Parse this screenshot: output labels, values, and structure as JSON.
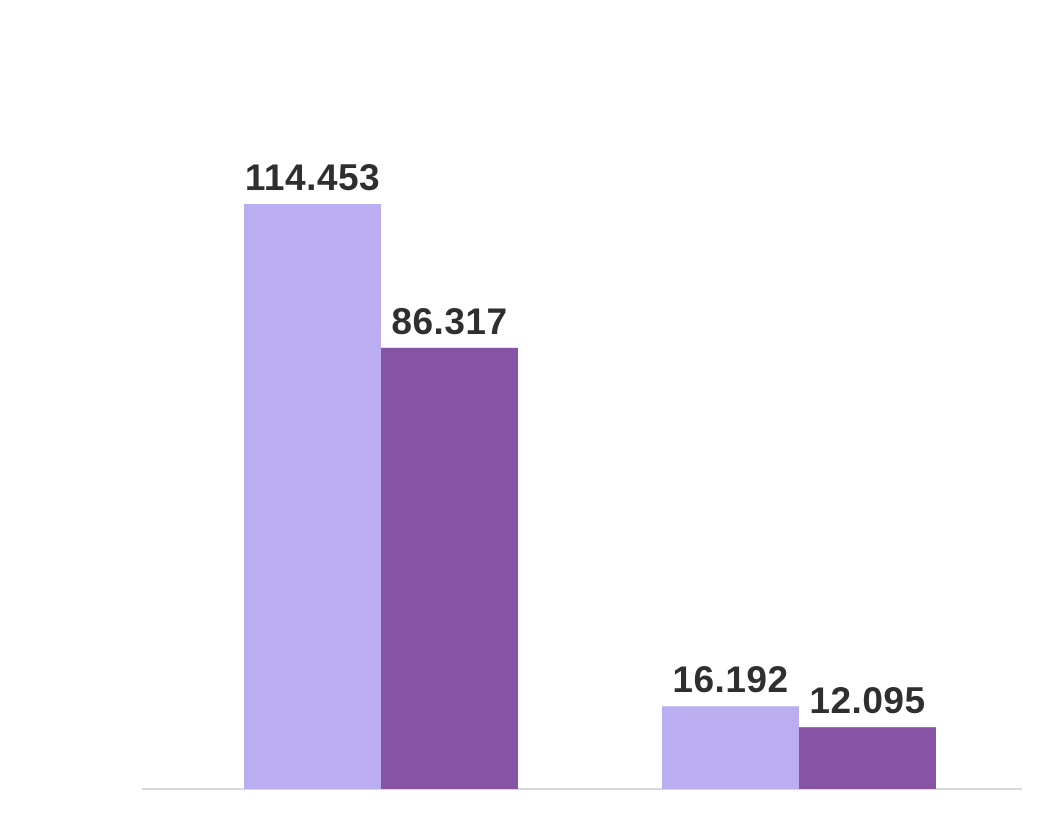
{
  "chart_data": {
    "type": "bar",
    "title": "",
    "xlabel": "",
    "ylabel": "",
    "ylim": [
      0,
      115
    ],
    "grid": false,
    "legend": "none",
    "categories": [
      "",
      ""
    ],
    "series": [
      {
        "color": "#bbaef0",
        "values": [
          114.453,
          16.192
        ],
        "labels": [
          "114.453",
          "16.192"
        ]
      },
      {
        "color": "#8653a5",
        "values": [
          86.317,
          12.095
        ],
        "labels": [
          "86.317",
          "12.095"
        ]
      }
    ]
  },
  "colors": {
    "background": "#ffffff",
    "label_text": "#2f2f2f",
    "baseline": "#d8d8df"
  }
}
